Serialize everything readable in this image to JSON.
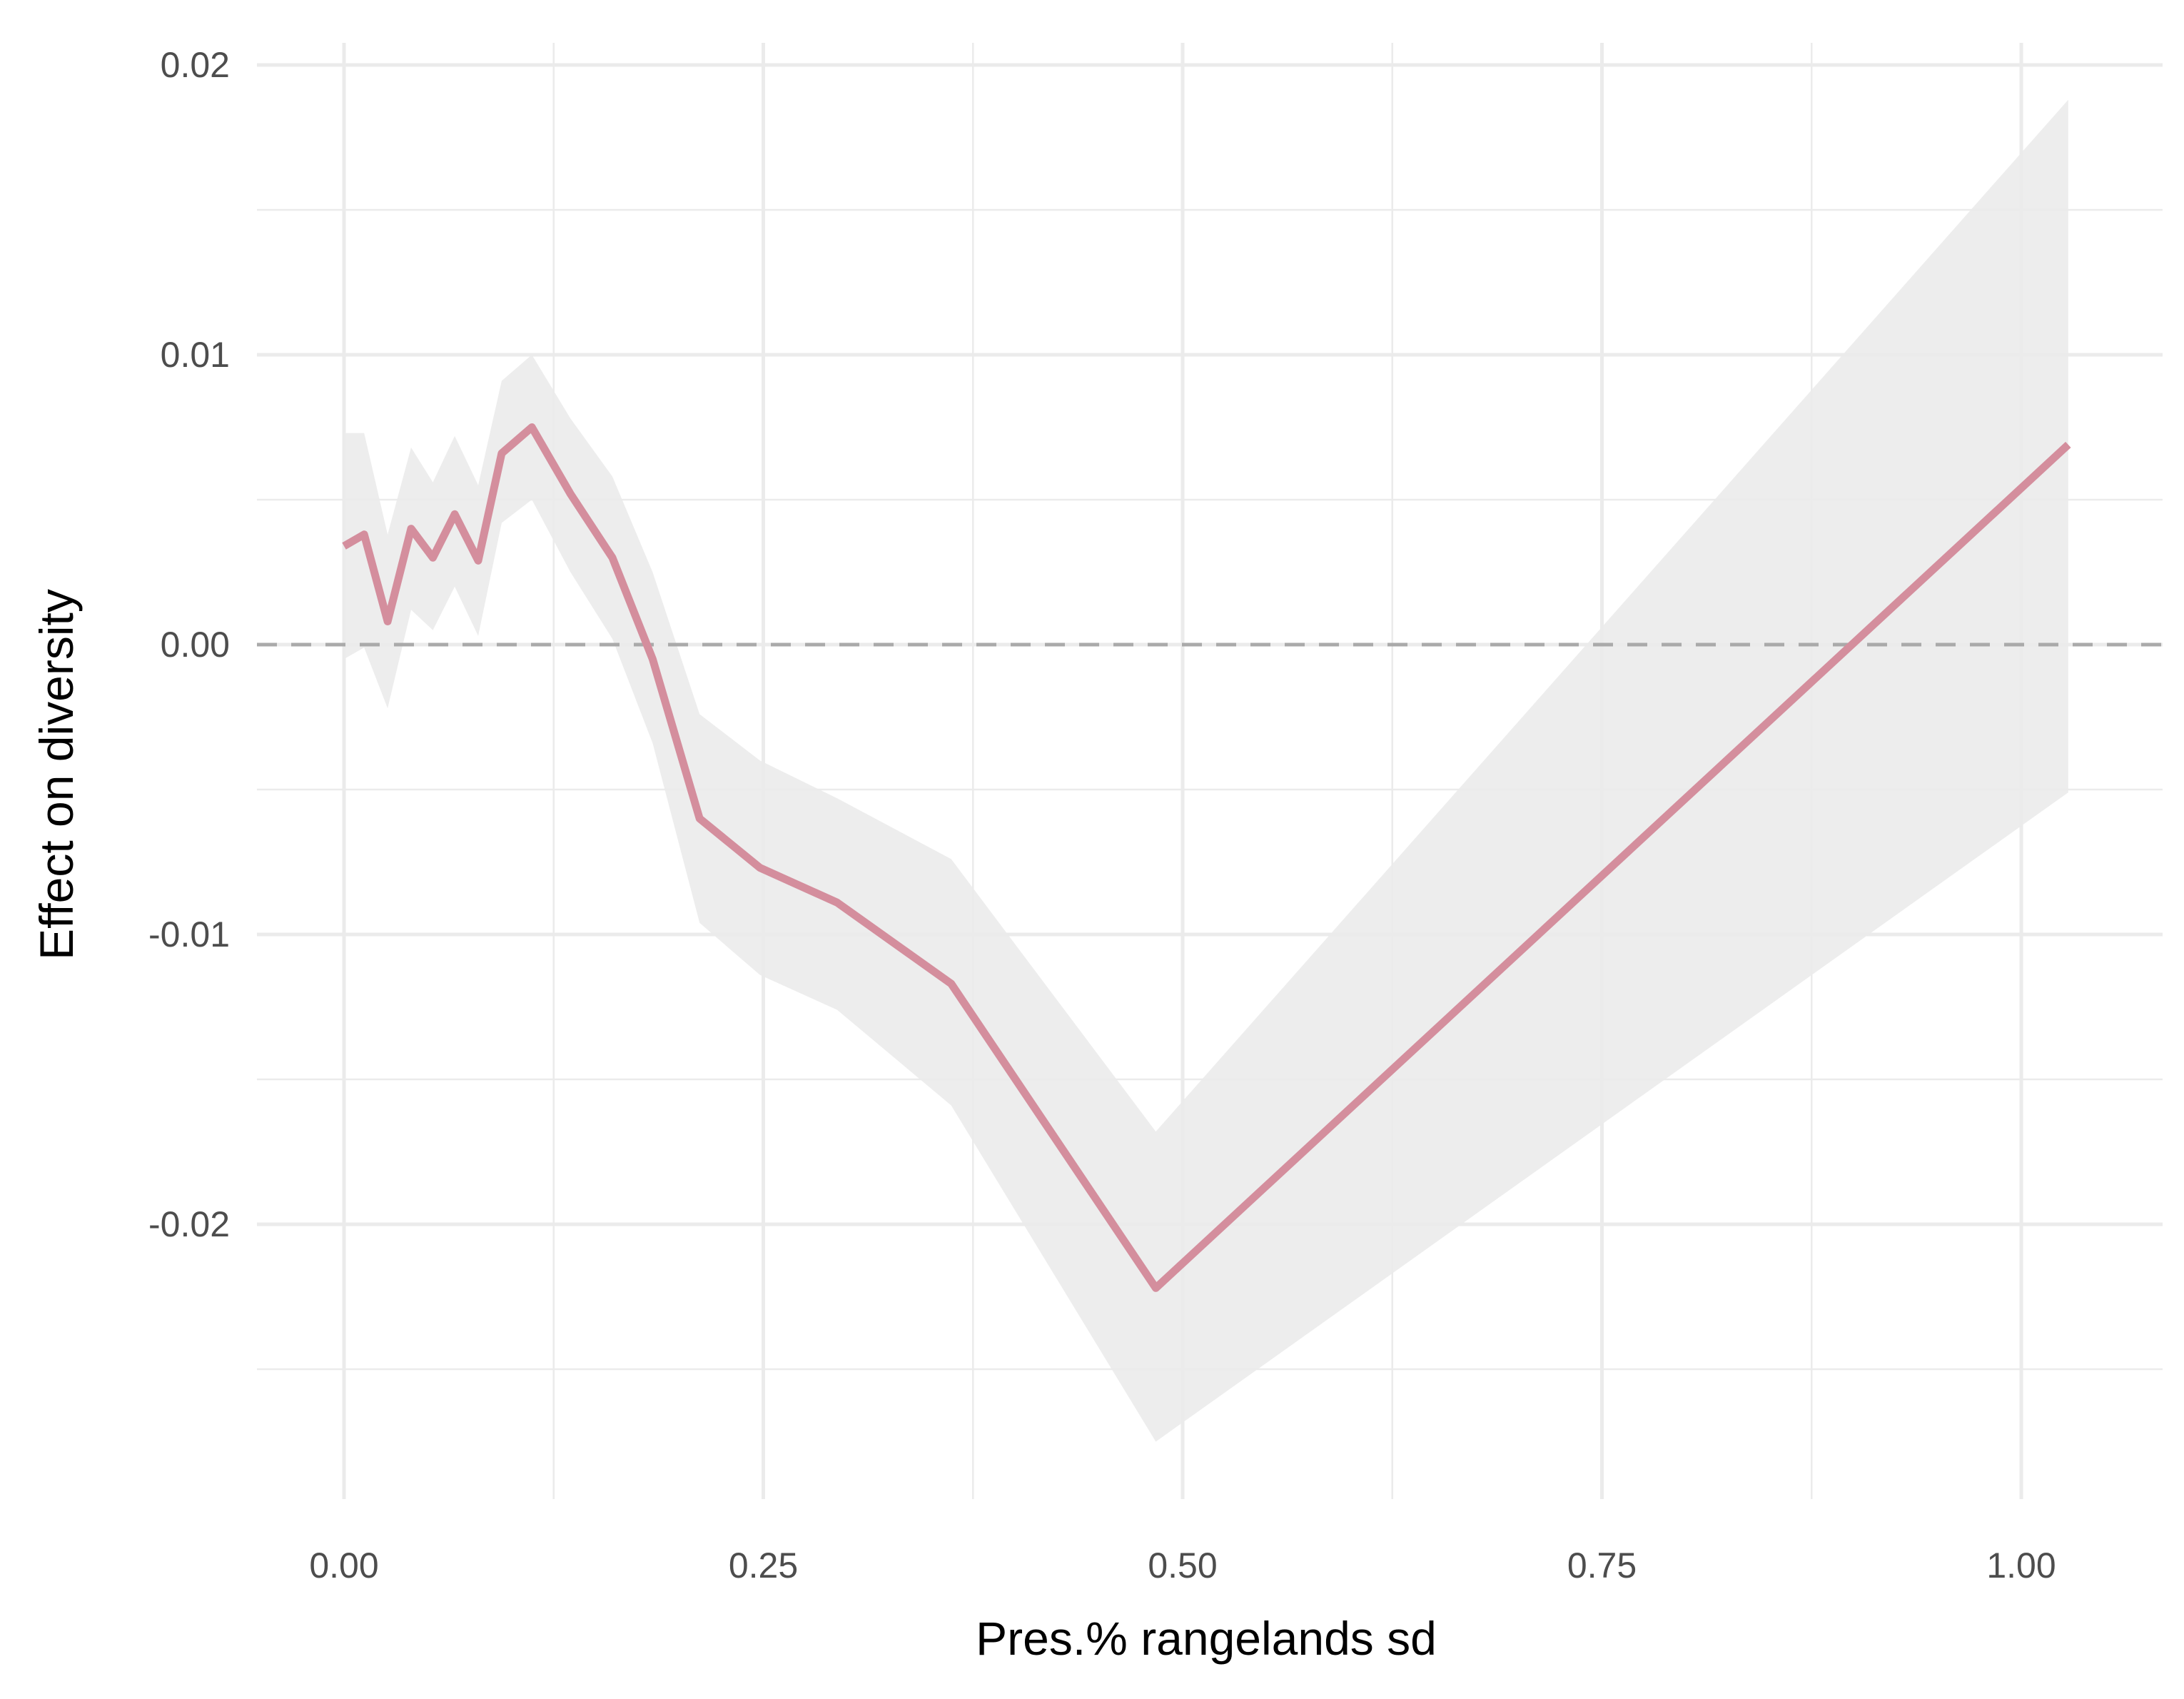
{
  "chart_data": {
    "type": "line",
    "title": "",
    "xlabel": "Pres.% rangelands sd",
    "ylabel": "Effect on diversity",
    "xlim": [
      -0.05,
      1.08
    ],
    "ylim": [
      -0.0298,
      0.0205
    ],
    "x_ticks": [
      0.0,
      0.25,
      0.5,
      0.75,
      1.0
    ],
    "x_tick_labels": [
      "0.00",
      "0.25",
      "0.50",
      "0.75",
      "1.00"
    ],
    "y_ticks": [
      -0.02,
      -0.01,
      0.0,
      0.01,
      0.02
    ],
    "y_tick_labels": [
      "-0.02",
      "-0.01",
      "0.00",
      "0.01",
      "0.02"
    ],
    "grid": true,
    "reference_line": {
      "y": 0.0,
      "style": "dashed",
      "color": "#aaaaaa"
    },
    "colors": {
      "line": "#d48e9d",
      "ribbon": "#ebebeb",
      "grid": "#ebebeb",
      "reference": "#aaaaaa"
    },
    "series": [
      {
        "x": [
          0.0,
          0.012,
          0.026,
          0.04,
          0.053,
          0.066,
          0.08,
          0.094,
          0.112,
          0.135,
          0.16,
          0.184,
          0.212,
          0.248,
          0.294,
          0.362,
          0.484,
          1.028
        ],
        "y": [
          0.0034,
          0.0038,
          0.0008,
          0.004,
          0.003,
          0.0045,
          0.0029,
          0.0066,
          0.0075,
          0.0052,
          0.003,
          -0.0005,
          -0.006,
          -0.0077,
          -0.0089,
          -0.0117,
          -0.0222,
          0.0069
        ],
        "lower": [
          -0.0005,
          -0.0001,
          -0.0022,
          0.0012,
          0.0005,
          0.002,
          0.0003,
          0.0042,
          0.005,
          0.0025,
          0.0002,
          -0.0034,
          -0.0096,
          -0.0114,
          -0.0126,
          -0.0159,
          -0.0275,
          -0.0051
        ],
        "upper": [
          0.0073,
          0.0073,
          0.0038,
          0.0068,
          0.0056,
          0.0072,
          0.0055,
          0.0091,
          0.01,
          0.0078,
          0.0058,
          0.0025,
          -0.0024,
          -0.004,
          -0.0053,
          -0.0074,
          -0.0168,
          0.0188
        ]
      }
    ]
  }
}
